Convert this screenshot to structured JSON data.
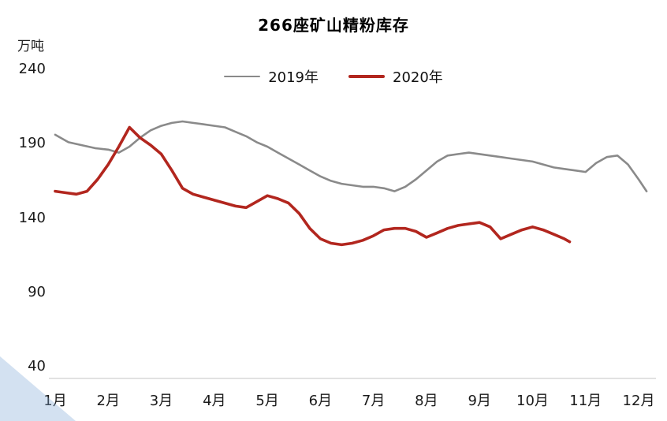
{
  "chart": {
    "title": "266座矿山精粉库存",
    "unit": "万吨"
  },
  "chart_data": {
    "type": "line",
    "title": "266座矿山精粉库存",
    "xlabel": "",
    "ylabel": "万吨",
    "ylim": [
      40,
      240
    ],
    "yticks": [
      240,
      190,
      140,
      90,
      40
    ],
    "x_categories": [
      "1月",
      "2月",
      "3月",
      "4月",
      "5月",
      "6月",
      "7月",
      "8月",
      "9月",
      "10月",
      "11月",
      "12月"
    ],
    "grid": false,
    "legend_position": "top-center",
    "axis_color": "#d9d9d9",
    "series": [
      {
        "name": "2019年",
        "color": "#8a8a8a",
        "stroke_width": 2.6,
        "points": [
          [
            1,
            196
          ],
          [
            1.25,
            191
          ],
          [
            1.5,
            189
          ],
          [
            1.75,
            187
          ],
          [
            2,
            186
          ],
          [
            2.2,
            184
          ],
          [
            2.4,
            188
          ],
          [
            2.6,
            194
          ],
          [
            2.8,
            199
          ],
          [
            3,
            202
          ],
          [
            3.2,
            204
          ],
          [
            3.4,
            205
          ],
          [
            3.6,
            204
          ],
          [
            3.8,
            203
          ],
          [
            4,
            202
          ],
          [
            4.2,
            201
          ],
          [
            4.4,
            198
          ],
          [
            4.6,
            195
          ],
          [
            4.8,
            191
          ],
          [
            5,
            188
          ],
          [
            5.2,
            184
          ],
          [
            5.4,
            180
          ],
          [
            5.6,
            176
          ],
          [
            5.8,
            172
          ],
          [
            6,
            168
          ],
          [
            6.2,
            165
          ],
          [
            6.4,
            163
          ],
          [
            6.6,
            162
          ],
          [
            6.8,
            161
          ],
          [
            7,
            161
          ],
          [
            7.2,
            160
          ],
          [
            7.4,
            158
          ],
          [
            7.6,
            161
          ],
          [
            7.8,
            166
          ],
          [
            8,
            172
          ],
          [
            8.2,
            178
          ],
          [
            8.4,
            182
          ],
          [
            8.6,
            183
          ],
          [
            8.8,
            184
          ],
          [
            9,
            183
          ],
          [
            9.2,
            182
          ],
          [
            9.4,
            181
          ],
          [
            9.6,
            180
          ],
          [
            9.8,
            179
          ],
          [
            10,
            178
          ],
          [
            10.2,
            176
          ],
          [
            10.4,
            174
          ],
          [
            10.6,
            173
          ],
          [
            10.8,
            172
          ],
          [
            11,
            171
          ],
          [
            11.2,
            177
          ],
          [
            11.4,
            181
          ],
          [
            11.6,
            182
          ],
          [
            11.8,
            176
          ],
          [
            12,
            166
          ],
          [
            12.15,
            158
          ]
        ]
      },
      {
        "name": "2020年",
        "color": "#b2261e",
        "stroke_width": 3.6,
        "points": [
          [
            1,
            158
          ],
          [
            1.2,
            157
          ],
          [
            1.4,
            156
          ],
          [
            1.6,
            158
          ],
          [
            1.8,
            166
          ],
          [
            2,
            176
          ],
          [
            2.2,
            188
          ],
          [
            2.4,
            201
          ],
          [
            2.6,
            194
          ],
          [
            2.8,
            189
          ],
          [
            3,
            183
          ],
          [
            3.2,
            172
          ],
          [
            3.4,
            160
          ],
          [
            3.6,
            156
          ],
          [
            3.8,
            154
          ],
          [
            4,
            152
          ],
          [
            4.2,
            150
          ],
          [
            4.4,
            148
          ],
          [
            4.6,
            147
          ],
          [
            4.8,
            151
          ],
          [
            5,
            155
          ],
          [
            5.2,
            153
          ],
          [
            5.4,
            150
          ],
          [
            5.6,
            143
          ],
          [
            5.8,
            133
          ],
          [
            6,
            126
          ],
          [
            6.2,
            123
          ],
          [
            6.4,
            122
          ],
          [
            6.6,
            123
          ],
          [
            6.8,
            125
          ],
          [
            7,
            128
          ],
          [
            7.2,
            132
          ],
          [
            7.4,
            133
          ],
          [
            7.6,
            133
          ],
          [
            7.8,
            131
          ],
          [
            8,
            127
          ],
          [
            8.2,
            130
          ],
          [
            8.4,
            133
          ],
          [
            8.6,
            135
          ],
          [
            8.8,
            136
          ],
          [
            9,
            137
          ],
          [
            9.2,
            134
          ],
          [
            9.4,
            126
          ],
          [
            9.6,
            129
          ],
          [
            9.8,
            132
          ],
          [
            10,
            134
          ],
          [
            10.2,
            132
          ],
          [
            10.4,
            129
          ],
          [
            10.6,
            126
          ],
          [
            10.7,
            124
          ]
        ]
      }
    ]
  }
}
